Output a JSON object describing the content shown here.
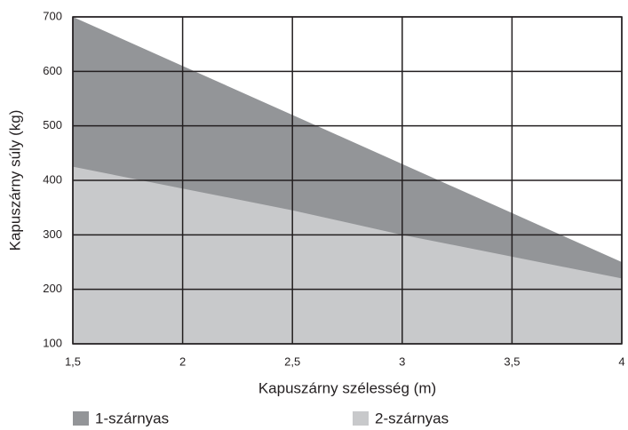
{
  "chart_data": {
    "type": "area",
    "x_label": "Kapuszárny szélesség (m)",
    "y_label": "Kapuszárny súly (kg)",
    "x": [
      1.5,
      2,
      2.5,
      3,
      3.5,
      4
    ],
    "series": [
      {
        "name": "1-szárnyas",
        "color": "#939598",
        "values": [
          700,
          610,
          520,
          430,
          340,
          250
        ]
      },
      {
        "name": "2-szárnyas",
        "color": "#c8c9cb",
        "values": [
          425,
          385,
          345,
          300,
          260,
          220
        ]
      }
    ],
    "xlim": [
      1.5,
      4
    ],
    "xticks": [
      {
        "value": 1.5,
        "label": "1,5"
      },
      2,
      {
        "value": 2.5,
        "label": "2,5"
      },
      3,
      {
        "value": 3.5,
        "label": "3,5"
      },
      4
    ],
    "ylim": [
      100,
      700
    ],
    "yticks": [
      100,
      200,
      300,
      400,
      500,
      600,
      700
    ],
    "grid": true
  }
}
